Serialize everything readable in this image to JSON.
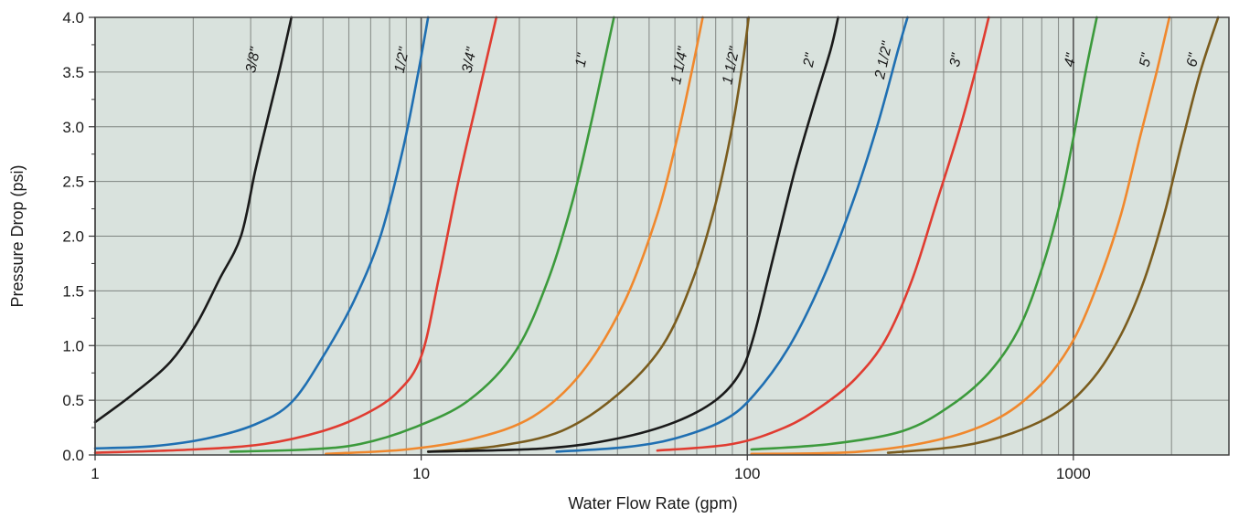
{
  "chart_data": {
    "type": "line",
    "title": "",
    "xlabel": "Water Flow Rate (gpm)",
    "ylabel": "Pressure Drop (psi)",
    "x_scale": "log",
    "xlim": [
      1,
      3000
    ],
    "ylim": [
      0,
      4.0
    ],
    "x_ticks": [
      1,
      10,
      100,
      1000
    ],
    "x_tick_labels": [
      "1",
      "10",
      "100",
      "1000"
    ],
    "y_ticks": [
      0,
      0.5,
      1.0,
      1.5,
      2.0,
      2.5,
      3.0,
      3.5,
      4.0
    ],
    "y_tick_labels": [
      "0.0",
      "0.5",
      "1.0",
      "1.5",
      "2.0",
      "2.5",
      "3.0",
      "3.5",
      "4.0"
    ],
    "grid": true,
    "background_color": "#d9e2dd",
    "series": [
      {
        "name": "3/8\"",
        "color": "#1a1a1a",
        "x": [
          1,
          1.3,
          1.7,
          2.05,
          2.4,
          2.8,
          3.1,
          3.4,
          3.7,
          4.0
        ],
        "y": [
          0.3,
          0.55,
          0.85,
          1.2,
          1.6,
          2.0,
          2.6,
          3.1,
          3.55,
          4.0
        ],
        "label_x": 3.15,
        "label_y": 3.6
      },
      {
        "name": "1/2\"",
        "color": "#1f6fb2",
        "x": [
          1,
          1.5,
          2.2,
          3.1,
          4.0,
          5.0,
          6.2,
          7.5,
          8.8,
          9.8,
          10.5
        ],
        "y": [
          0.06,
          0.08,
          0.15,
          0.28,
          0.48,
          0.9,
          1.4,
          2.0,
          2.8,
          3.5,
          4.0
        ],
        "label_x": 9.0,
        "label_y": 3.6
      },
      {
        "name": "3/4\"",
        "color": "#e03c31",
        "x": [
          1,
          2.0,
          3.3,
          5.0,
          6.8,
          8.5,
          10.0,
          11.3,
          13.0,
          15.0,
          17.0
        ],
        "y": [
          0.02,
          0.05,
          0.1,
          0.22,
          0.38,
          0.58,
          0.9,
          1.6,
          2.5,
          3.3,
          4.0
        ],
        "label_x": 14.5,
        "label_y": 3.6
      },
      {
        "name": "1\"",
        "color": "#3c9a3c",
        "x": [
          2.6,
          4.5,
          6.5,
          9.5,
          14.0,
          19.5,
          24.5,
          29.0,
          33.0,
          36.5,
          39.0
        ],
        "y": [
          0.03,
          0.05,
          0.1,
          0.25,
          0.5,
          0.95,
          1.6,
          2.3,
          3.0,
          3.6,
          4.0
        ],
        "label_x": 32.0,
        "label_y": 3.6
      },
      {
        "name": "1 1/4\"",
        "color": "#f0882d",
        "x": [
          5.1,
          9.0,
          14.5,
          22.0,
          31.0,
          42.0,
          53.0,
          61.0,
          67.5,
          73.0
        ],
        "y": [
          0.01,
          0.05,
          0.15,
          0.35,
          0.75,
          1.4,
          2.2,
          2.9,
          3.5,
          4.0
        ],
        "label_x": 64.0,
        "label_y": 3.55
      },
      {
        "name": "1 1/2\"",
        "color": "#7a5c1e",
        "x": [
          10.5,
          17.0,
          27.0,
          40.0,
          55.0,
          68.0,
          80.0,
          90.0,
          97.0,
          101.0
        ],
        "y": [
          0.03,
          0.08,
          0.22,
          0.55,
          1.0,
          1.6,
          2.3,
          3.0,
          3.6,
          4.0
        ],
        "label_x": 92.0,
        "label_y": 3.55
      },
      {
        "name": "2\"",
        "color": "#1a1a1a",
        "x": [
          10.5,
          24.0,
          40.0,
          60.0,
          80.0,
          95.0,
          105.0,
          120.0,
          140.0,
          160.0,
          180.0,
          190.0
        ],
        "y": [
          0.03,
          0.06,
          0.15,
          0.3,
          0.5,
          0.75,
          1.1,
          1.8,
          2.6,
          3.2,
          3.7,
          4.0
        ],
        "label_x": 160.0,
        "label_y": 3.6
      },
      {
        "name": "2 1/2\"",
        "color": "#1f6fb2",
        "x": [
          26.0,
          42.0,
          60.0,
          85.0,
          105.0,
          135.0,
          170.0,
          210.0,
          250.0,
          290.0,
          310.0
        ],
        "y": [
          0.03,
          0.07,
          0.15,
          0.32,
          0.55,
          1.0,
          1.6,
          2.3,
          3.0,
          3.7,
          4.0
        ],
        "label_x": 270.0,
        "label_y": 3.6
      },
      {
        "name": "3\"",
        "color": "#e03c31",
        "x": [
          53.0,
          90.0,
          130.0,
          170.0,
          215.0,
          265.0,
          320.0,
          380.0,
          450.0,
          510.0,
          550.0
        ],
        "y": [
          0.04,
          0.1,
          0.25,
          0.45,
          0.7,
          1.05,
          1.6,
          2.3,
          3.0,
          3.6,
          4.0
        ],
        "label_x": 450.0,
        "label_y": 3.6
      },
      {
        "name": "4\"",
        "color": "#3c9a3c",
        "x": [
          103.0,
          180.0,
          300.0,
          420.0,
          550.0,
          680.0,
          800.0,
          910.0,
          1000.0,
          1090.0,
          1180.0
        ],
        "y": [
          0.05,
          0.1,
          0.22,
          0.45,
          0.75,
          1.15,
          1.7,
          2.3,
          2.9,
          3.5,
          4.0
        ],
        "label_x": 1010.0,
        "label_y": 3.6
      },
      {
        "name": "5\"",
        "color": "#f0882d",
        "x": [
          103.0,
          220.0,
          400.0,
          600.0,
          800.0,
          1000.0,
          1200.0,
          1400.0,
          1600.0,
          1800.0,
          1970.0
        ],
        "y": [
          0.01,
          0.03,
          0.15,
          0.35,
          0.65,
          1.05,
          1.6,
          2.2,
          2.9,
          3.5,
          4.0
        ],
        "label_x": 1720.0,
        "label_y": 3.6
      },
      {
        "name": "6\"",
        "color": "#7a5c1e",
        "x": [
          270.0,
          450.0,
          650.0,
          900.0,
          1150.0,
          1400.0,
          1650.0,
          1900.0,
          2150.0,
          2450.0,
          2780.0
        ],
        "y": [
          0.02,
          0.08,
          0.2,
          0.4,
          0.7,
          1.1,
          1.6,
          2.2,
          2.85,
          3.5,
          4.0
        ],
        "label_x": 2400.0,
        "label_y": 3.6
      }
    ]
  }
}
